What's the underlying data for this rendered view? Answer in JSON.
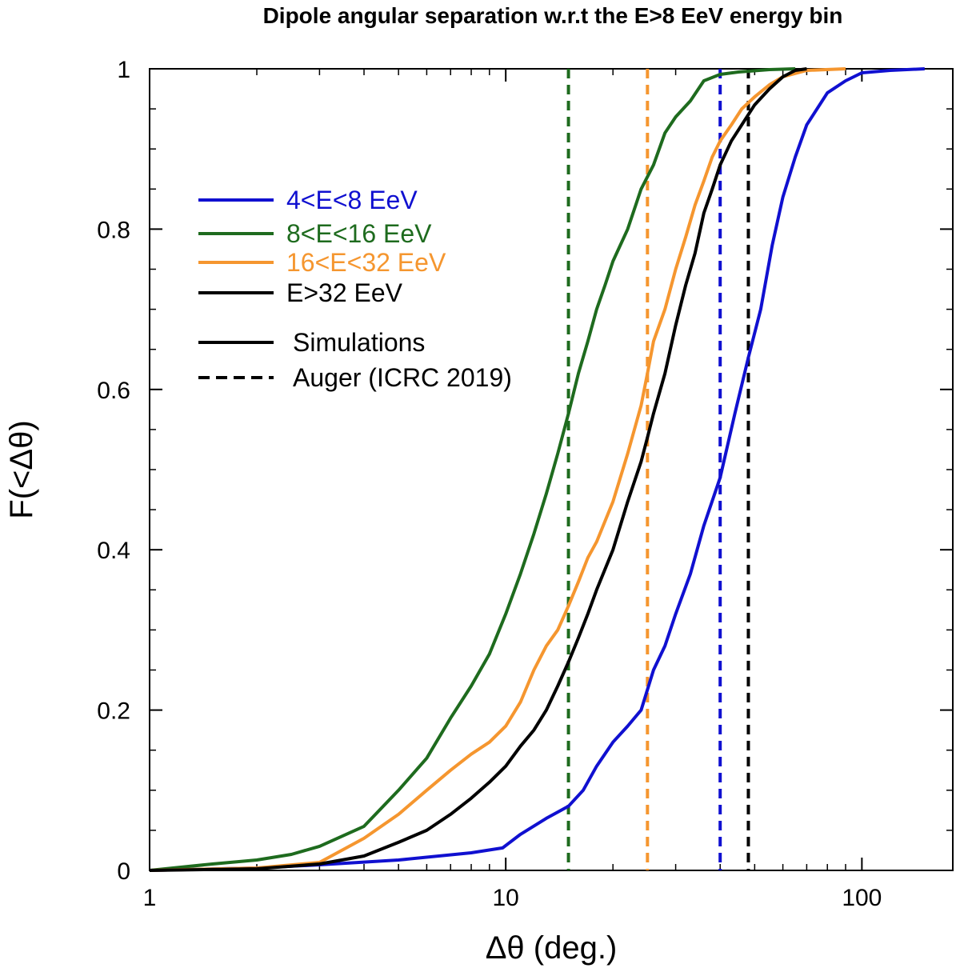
{
  "chart_data": {
    "type": "line",
    "title": "Dipole angular separation w.r.t the E>8 EeV energy bin",
    "xlabel": "Δθ (deg.)",
    "ylabel": "F(<Δθ)",
    "xscale": "log",
    "xlim": [
      1,
      180
    ],
    "ylim": [
      0,
      1
    ],
    "x_ticks": [
      1,
      10,
      100
    ],
    "x_tick_labels": [
      "1",
      "10",
      "100"
    ],
    "y_ticks": [
      0,
      0.2,
      0.4,
      0.6,
      0.8,
      1
    ],
    "y_tick_labels": [
      "0",
      "0.2",
      "0.4",
      "0.6",
      "0.8",
      "1"
    ],
    "legend_position": "upper-left",
    "style_legend": [
      {
        "label": "Simulations",
        "style": "solid"
      },
      {
        "label": "Auger (ICRC 2019)",
        "style": "dashed"
      }
    ],
    "series": [
      {
        "name": "4<E<8 EeV",
        "color": "#1010d0",
        "auger_value": 40,
        "points": [
          [
            1,
            0
          ],
          [
            2,
            0.003
          ],
          [
            3,
            0.007
          ],
          [
            5,
            0.013
          ],
          [
            8,
            0.022
          ],
          [
            9.8,
            0.028
          ],
          [
            11,
            0.045
          ],
          [
            13,
            0.065
          ],
          [
            15,
            0.08
          ],
          [
            16.5,
            0.1
          ],
          [
            18,
            0.13
          ],
          [
            20,
            0.16
          ],
          [
            22,
            0.18
          ],
          [
            24,
            0.2
          ],
          [
            26,
            0.25
          ],
          [
            28,
            0.28
          ],
          [
            30,
            0.32
          ],
          [
            33,
            0.37
          ],
          [
            36,
            0.43
          ],
          [
            40,
            0.49
          ],
          [
            44,
            0.57
          ],
          [
            48,
            0.64
          ],
          [
            52,
            0.7
          ],
          [
            56,
            0.78
          ],
          [
            60,
            0.84
          ],
          [
            65,
            0.89
          ],
          [
            70,
            0.93
          ],
          [
            80,
            0.97
          ],
          [
            90,
            0.985
          ],
          [
            100,
            0.995
          ],
          [
            120,
            0.998
          ],
          [
            150,
            1
          ]
        ]
      },
      {
        "name": "8<E<16 EeV",
        "color": "#1e6b1e",
        "auger_value": 15,
        "points": [
          [
            1,
            0
          ],
          [
            1.5,
            0.008
          ],
          [
            2,
            0.013
          ],
          [
            2.5,
            0.02
          ],
          [
            3,
            0.03
          ],
          [
            4,
            0.055
          ],
          [
            5,
            0.1
          ],
          [
            6,
            0.14
          ],
          [
            7,
            0.19
          ],
          [
            8,
            0.23
          ],
          [
            9,
            0.27
          ],
          [
            10,
            0.32
          ],
          [
            11,
            0.37
          ],
          [
            12,
            0.42
          ],
          [
            13,
            0.47
          ],
          [
            14,
            0.52
          ],
          [
            15,
            0.57
          ],
          [
            16,
            0.62
          ],
          [
            17,
            0.66
          ],
          [
            18,
            0.7
          ],
          [
            19,
            0.73
          ],
          [
            20,
            0.76
          ],
          [
            22,
            0.8
          ],
          [
            24,
            0.85
          ],
          [
            26,
            0.88
          ],
          [
            28,
            0.92
          ],
          [
            30,
            0.94
          ],
          [
            33,
            0.96
          ],
          [
            36,
            0.985
          ],
          [
            40,
            0.993
          ],
          [
            45,
            0.996
          ],
          [
            55,
            0.999
          ],
          [
            65,
            1
          ]
        ]
      },
      {
        "name": "16<E<32 EeV",
        "color": "#f5962f",
        "auger_value": 25,
        "points": [
          [
            1,
            0
          ],
          [
            2,
            0.003
          ],
          [
            3,
            0.01
          ],
          [
            4,
            0.04
          ],
          [
            5,
            0.07
          ],
          [
            6,
            0.1
          ],
          [
            7,
            0.125
          ],
          [
            8,
            0.145
          ],
          [
            9,
            0.16
          ],
          [
            10,
            0.18
          ],
          [
            11,
            0.21
          ],
          [
            12,
            0.25
          ],
          [
            13,
            0.28
          ],
          [
            14,
            0.3
          ],
          [
            15,
            0.33
          ],
          [
            16,
            0.36
          ],
          [
            17,
            0.39
          ],
          [
            18,
            0.41
          ],
          [
            20,
            0.46
          ],
          [
            22,
            0.52
          ],
          [
            24,
            0.58
          ],
          [
            25,
            0.62
          ],
          [
            26,
            0.66
          ],
          [
            28,
            0.7
          ],
          [
            30,
            0.75
          ],
          [
            32,
            0.79
          ],
          [
            34,
            0.83
          ],
          [
            36,
            0.86
          ],
          [
            38,
            0.89
          ],
          [
            40,
            0.91
          ],
          [
            43,
            0.93
          ],
          [
            46,
            0.95
          ],
          [
            50,
            0.965
          ],
          [
            55,
            0.98
          ],
          [
            60,
            0.99
          ],
          [
            70,
            0.998
          ],
          [
            90,
            1
          ]
        ]
      },
      {
        "name": "E>32 EeV",
        "color": "#000000",
        "auger_value": 48,
        "points": [
          [
            1,
            0
          ],
          [
            2,
            0.002
          ],
          [
            3,
            0.008
          ],
          [
            4,
            0.018
          ],
          [
            5,
            0.035
          ],
          [
            6,
            0.05
          ],
          [
            7,
            0.07
          ],
          [
            8,
            0.09
          ],
          [
            9,
            0.11
          ],
          [
            10,
            0.13
          ],
          [
            11,
            0.155
          ],
          [
            12,
            0.175
          ],
          [
            13,
            0.2
          ],
          [
            14,
            0.23
          ],
          [
            15,
            0.26
          ],
          [
            16,
            0.29
          ],
          [
            17,
            0.32
          ],
          [
            18,
            0.35
          ],
          [
            20,
            0.4
          ],
          [
            22,
            0.46
          ],
          [
            24,
            0.51
          ],
          [
            25,
            0.54
          ],
          [
            26,
            0.57
          ],
          [
            28,
            0.62
          ],
          [
            30,
            0.68
          ],
          [
            32,
            0.73
          ],
          [
            34,
            0.77
          ],
          [
            36,
            0.82
          ],
          [
            38,
            0.85
          ],
          [
            40,
            0.88
          ],
          [
            43,
            0.91
          ],
          [
            46,
            0.93
          ],
          [
            50,
            0.955
          ],
          [
            55,
            0.975
          ],
          [
            60,
            0.99
          ],
          [
            65,
            0.998
          ],
          [
            70,
            1
          ]
        ]
      }
    ]
  }
}
